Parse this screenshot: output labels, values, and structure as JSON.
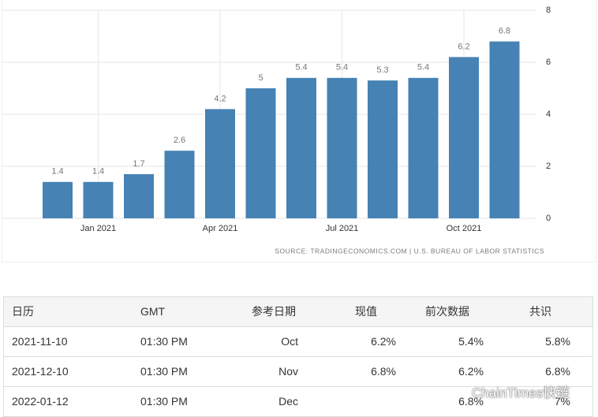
{
  "chart_data": {
    "type": "bar",
    "categories": [
      null,
      "Jan 2021",
      null,
      null,
      "Apr 2021",
      null,
      null,
      "Jul 2021",
      null,
      null,
      "Oct 2021",
      null
    ],
    "values": [
      1.4,
      1.4,
      1.7,
      2.6,
      4.2,
      5,
      5.4,
      5.4,
      5.3,
      5.4,
      6.2,
      6.8
    ],
    "color": "#4682b4",
    "ylim": [
      0,
      8
    ],
    "yticks": [
      0,
      2,
      4,
      6,
      8
    ],
    "grid": true,
    "source": "SOURCE: TRADINGECONOMICS.COM | U.S. BUREAU OF LABOR STATISTICS"
  },
  "table": {
    "headers": [
      "日历",
      "GMT",
      "参考日期",
      "现值",
      "前次数据",
      "共识"
    ],
    "rows": [
      {
        "date": "2021-11-10",
        "gmt": "01:30 PM",
        "ref": "Oct",
        "actual": "6.2%",
        "previous": "5.4%",
        "consensus": "5.8%"
      },
      {
        "date": "2021-12-10",
        "gmt": "01:30 PM",
        "ref": "Nov",
        "actual": "6.8%",
        "previous": "6.2%",
        "consensus": "6.8%"
      },
      {
        "date": "2022-01-12",
        "gmt": "01:30 PM",
        "ref": "Dec",
        "previous": "6.8%",
        "consensus": "7%"
      }
    ]
  },
  "watermark": "ChainTimes快链"
}
